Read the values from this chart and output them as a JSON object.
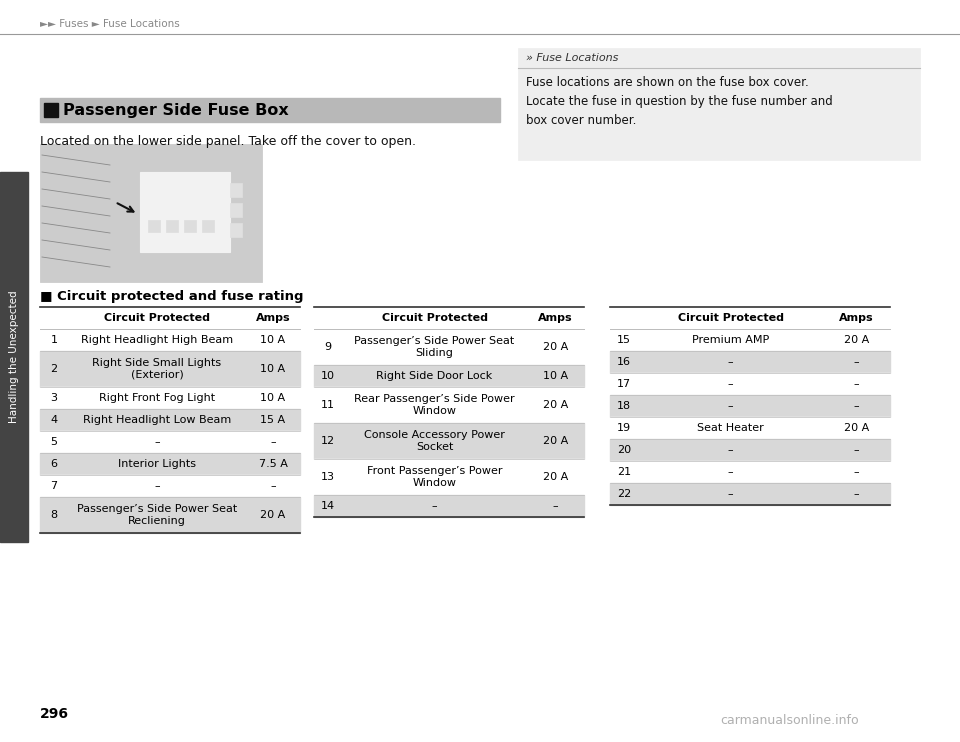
{
  "page_num": "296",
  "breadcrumb": "►► Fuses ► Fuse Locations",
  "sidebar_text": "Handling the Unexpected",
  "section_title": "Passenger Side Fuse Box",
  "section_desc": "Located on the lower side panel. Take off the cover to open.",
  "subsection_title": "■ Circuit protected and fuse rating",
  "info_box_title": "» Fuse Locations",
  "info_box_text": "Fuse locations are shown on the fuse box cover.\nLocate the fuse in question by the fuse number and\nbox cover number.",
  "watermark": "carmanualsonline.info",
  "table1_header": [
    "Circuit Protected",
    "Amps"
  ],
  "table1_rows": [
    [
      "1",
      "Right Headlight High Beam",
      "10 A",
      false
    ],
    [
      "2",
      "Right Side Small Lights\n(Exterior)",
      "10 A",
      true
    ],
    [
      "3",
      "Right Front Fog Light",
      "10 A",
      false
    ],
    [
      "4",
      "Right Headlight Low Beam",
      "15 A",
      true
    ],
    [
      "5",
      "–",
      "–",
      false
    ],
    [
      "6",
      "Interior Lights",
      "7.5 A",
      true
    ],
    [
      "7",
      "–",
      "–",
      false
    ],
    [
      "8",
      "Passenger’s Side Power Seat\nRecliening",
      "20 A",
      true
    ]
  ],
  "table2_header": [
    "Circuit Protected",
    "Amps"
  ],
  "table2_rows": [
    [
      "9",
      "Passenger’s Side Power Seat\nSliding",
      "20 A",
      false
    ],
    [
      "10",
      "Right Side Door Lock",
      "10 A",
      true
    ],
    [
      "11",
      "Rear Passenger’s Side Power\nWindow",
      "20 A",
      false
    ],
    [
      "12",
      "Console Accessory Power\nSocket",
      "20 A",
      true
    ],
    [
      "13",
      "Front Passenger’s Power\nWindow",
      "20 A",
      false
    ],
    [
      "14",
      "–",
      "–",
      true
    ]
  ],
  "table3_header": [
    "Circuit Protected",
    "Amps"
  ],
  "table3_rows": [
    [
      "15",
      "Premium AMP",
      "20 A",
      false
    ],
    [
      "16",
      "–",
      "–",
      true
    ],
    [
      "17",
      "–",
      "–",
      false
    ],
    [
      "18",
      "–",
      "–",
      true
    ],
    [
      "19",
      "Seat Heater",
      "20 A",
      false
    ],
    [
      "20",
      "–",
      "–",
      true
    ],
    [
      "21",
      "–",
      "–",
      false
    ],
    [
      "22",
      "–",
      "–",
      true
    ]
  ],
  "bg_color": "#ffffff",
  "row_alt_bg": "#d8d8d8",
  "row_white_bg": "#ffffff",
  "info_box_bg": "#eeeeee",
  "breadcrumb_color": "#888888",
  "sidebar_color": "#333333",
  "text_color": "#111111",
  "section_header_bg": "#b8b8b8",
  "divider_color": "#999999",
  "dark_bar_color": "#555555",
  "table_top_line": "#333333",
  "table_row_line": "#bbbbbb",
  "table_bottom_line": "#333333"
}
